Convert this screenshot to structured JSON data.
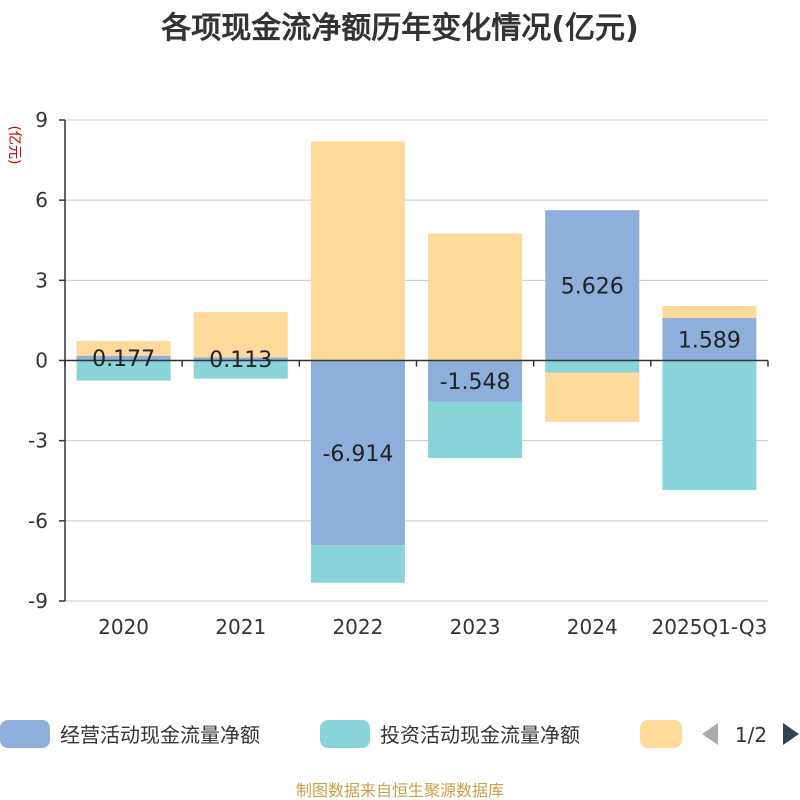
{
  "chart_data": {
    "type": "bar",
    "stacked": true,
    "title": "各项现金流净额历年变化情况(亿元)",
    "ylabel": "(亿元)",
    "xlabel": "",
    "ylim": [
      -9,
      9
    ],
    "yticks": [
      9,
      6,
      3,
      0,
      -3,
      -6,
      -9
    ],
    "categories": [
      "2020",
      "2021",
      "2022",
      "2023",
      "2024",
      "2025Q1-Q3"
    ],
    "series": [
      {
        "name": "经营活动现金流量净额",
        "color": "#8eaedb",
        "values": [
          0.177,
          0.113,
          -6.914,
          -1.548,
          5.626,
          1.589
        ],
        "labels": [
          "0.177",
          "0.113",
          "-6.914",
          "-1.548",
          "5.626",
          "1.589"
        ]
      },
      {
        "name": "投资活动现金流量净额",
        "color": "#88d4d8",
        "values": [
          -0.75,
          -0.68,
          -1.4,
          -2.1,
          -0.45,
          -4.85
        ]
      },
      {
        "name": "",
        "color": "#fdd99a",
        "values": [
          0.55,
          1.7,
          8.2,
          4.75,
          -1.85,
          0.45
        ]
      }
    ],
    "legend": {
      "position": "bottom",
      "page": "1/2"
    },
    "grid": true
  },
  "source": "制图数据来自恒生聚源数据库"
}
